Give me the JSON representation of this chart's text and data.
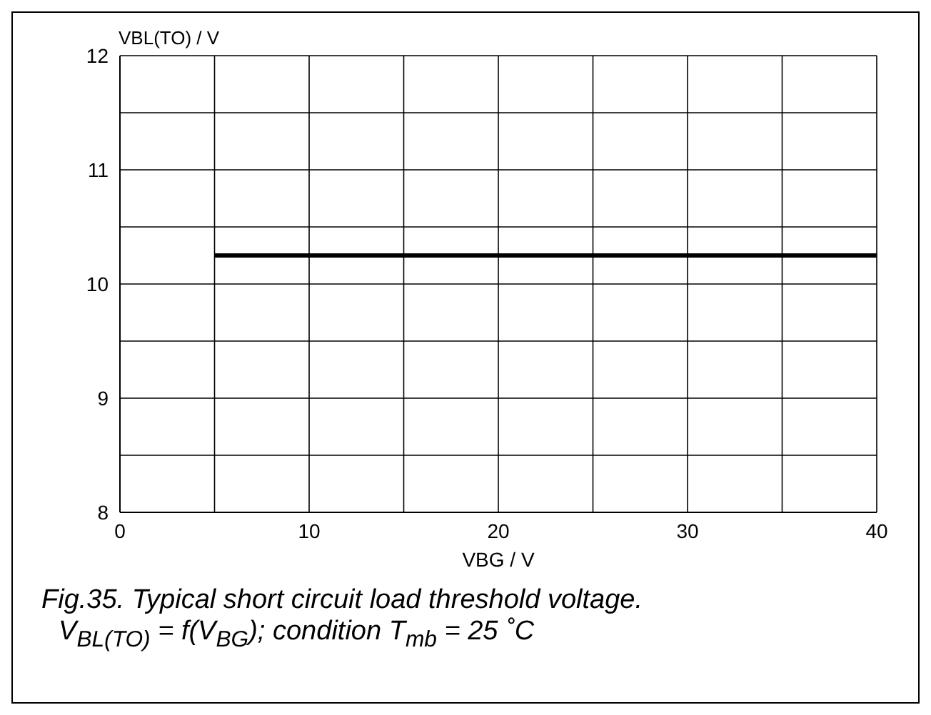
{
  "chart_data": {
    "type": "line",
    "xlabel": "VBG / V",
    "ylabel": "VBL(TO) / V",
    "annotations": [
      "Fig.35.   Typical short circuit load threshold voltage.",
      "V$_{BL(TO)}$ = f(V$_{BG}$); condition T$_{mb}$ = 25 ˚C"
    ],
    "x": [
      5,
      40
    ],
    "series": [
      {
        "color": "#000000",
        "values": [
          10.25,
          10.25
        ]
      }
    ],
    "xlim": [
      0,
      40
    ],
    "ylim": [
      8,
      12
    ],
    "xticks": [
      0,
      {
        "value": 5,
        "label": null
      },
      10,
      {
        "value": 15,
        "label": null
      },
      20,
      {
        "value": 25,
        "label": null
      },
      30,
      {
        "value": 35,
        "label": null
      },
      40
    ],
    "yticks": [
      8,
      {
        "value": 8.5,
        "label": null
      },
      9,
      {
        "value": 9.5,
        "label": null
      },
      10,
      {
        "value": 10.5,
        "label": null
      },
      11,
      {
        "value": 11.5,
        "label": null
      },
      12
    ],
    "grid": true,
    "legend": false,
    "marker": "none",
    "line_style": "solid"
  }
}
